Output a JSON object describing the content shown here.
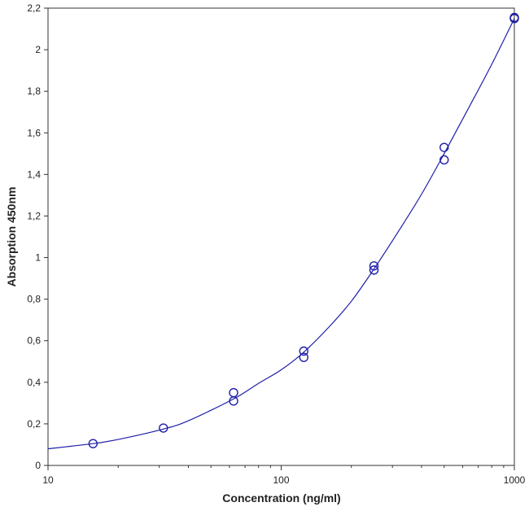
{
  "chart_data": {
    "type": "scatter",
    "title": "",
    "xlabel": "Concentration (ng/ml)",
    "ylabel": "Absorption 450nm",
    "xscale": "log",
    "xlim": [
      10,
      1000
    ],
    "ylim": [
      0,
      2.2
    ],
    "x_ticks": [
      10,
      100,
      1000
    ],
    "x_tick_labels": [
      "10",
      "100",
      "1000"
    ],
    "y_ticks": [
      0,
      0.2,
      0.4,
      0.6,
      0.8,
      1,
      1.2,
      1.4,
      1.6,
      1.8,
      2,
      2.2
    ],
    "y_tick_labels": [
      "0",
      "0,2",
      "0,4",
      "0,6",
      "0,8",
      "1",
      "1,2",
      "1,4",
      "1,6",
      "1,8",
      "2",
      "2,2"
    ],
    "grid": false,
    "legend": "none",
    "marker": "open-circle",
    "color": "#1f1fa8",
    "points": [
      {
        "x": 15.6,
        "y": 0.105
      },
      {
        "x": 31.25,
        "y": 0.18
      },
      {
        "x": 62.5,
        "y": 0.31
      },
      {
        "x": 62.5,
        "y": 0.35
      },
      {
        "x": 125,
        "y": 0.52
      },
      {
        "x": 125,
        "y": 0.55
      },
      {
        "x": 250,
        "y": 0.94
      },
      {
        "x": 250,
        "y": 0.96
      },
      {
        "x": 500,
        "y": 1.47
      },
      {
        "x": 500,
        "y": 1.53
      },
      {
        "x": 1000,
        "y": 2.15
      },
      {
        "x": 1000,
        "y": 2.155
      }
    ],
    "fit_curve": [
      {
        "x": 10,
        "y": 0.08
      },
      {
        "x": 15.6,
        "y": 0.105
      },
      {
        "x": 20,
        "y": 0.125
      },
      {
        "x": 31.25,
        "y": 0.175
      },
      {
        "x": 40,
        "y": 0.215
      },
      {
        "x": 62.5,
        "y": 0.32
      },
      {
        "x": 80,
        "y": 0.395
      },
      {
        "x": 100,
        "y": 0.46
      },
      {
        "x": 125,
        "y": 0.545
      },
      {
        "x": 160,
        "y": 0.665
      },
      {
        "x": 200,
        "y": 0.79
      },
      {
        "x": 250,
        "y": 0.945
      },
      {
        "x": 320,
        "y": 1.13
      },
      {
        "x": 400,
        "y": 1.305
      },
      {
        "x": 500,
        "y": 1.5
      },
      {
        "x": 630,
        "y": 1.71
      },
      {
        "x": 800,
        "y": 1.93
      },
      {
        "x": 1000,
        "y": 2.15
      }
    ]
  }
}
